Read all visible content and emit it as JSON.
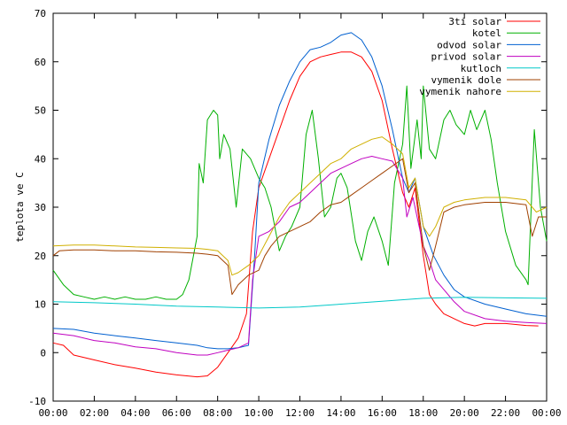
{
  "chart_data": {
    "type": "line",
    "ylabel": "teplota ve C",
    "ylim": [
      -10,
      70
    ],
    "xlim": [
      0,
      24
    ],
    "y_ticks": [
      -10,
      0,
      10,
      20,
      30,
      40,
      50,
      60,
      70
    ],
    "x_ticks": [
      "00:00",
      "02:00",
      "04:00",
      "06:00",
      "08:00",
      "10:00",
      "12:00",
      "14:00",
      "16:00",
      "18:00",
      "20:00",
      "22:00",
      "00:00"
    ],
    "grid": false,
    "legend_position": "top-right",
    "series": [
      {
        "name": "3ti solar",
        "color": "#ff0000",
        "points": [
          [
            0,
            2
          ],
          [
            0.5,
            1.5
          ],
          [
            1,
            -0.5
          ],
          [
            2,
            -1.5
          ],
          [
            3,
            -2.5
          ],
          [
            4,
            -3.2
          ],
          [
            5,
            -4
          ],
          [
            6,
            -4.6
          ],
          [
            7,
            -5
          ],
          [
            7.5,
            -4.8
          ],
          [
            8,
            -3
          ],
          [
            8.5,
            0
          ],
          [
            9,
            3
          ],
          [
            9.4,
            8
          ],
          [
            9.7,
            25
          ],
          [
            10,
            34
          ],
          [
            10.5,
            40
          ],
          [
            11,
            46
          ],
          [
            11.5,
            52
          ],
          [
            12,
            57
          ],
          [
            12.5,
            60
          ],
          [
            13,
            61
          ],
          [
            13.5,
            61.5
          ],
          [
            14,
            62
          ],
          [
            14.5,
            62
          ],
          [
            15,
            61
          ],
          [
            15.5,
            58
          ],
          [
            16,
            52
          ],
          [
            16.5,
            42
          ],
          [
            17,
            33
          ],
          [
            17.3,
            30
          ],
          [
            17.6,
            34
          ],
          [
            18,
            20
          ],
          [
            18.3,
            12
          ],
          [
            18.6,
            10
          ],
          [
            19,
            8
          ],
          [
            19.5,
            7
          ],
          [
            20,
            6
          ],
          [
            20.5,
            5.5
          ],
          [
            21,
            6
          ],
          [
            22,
            6
          ],
          [
            23,
            5.6
          ],
          [
            23.6,
            5.5
          ]
        ]
      },
      {
        "name": "kotel",
        "color": "#00b000",
        "points": [
          [
            0,
            17
          ],
          [
            0.5,
            14
          ],
          [
            1,
            12
          ],
          [
            1.5,
            11.5
          ],
          [
            2,
            11
          ],
          [
            2.5,
            11.5
          ],
          [
            3,
            11
          ],
          [
            3.5,
            11.5
          ],
          [
            4,
            11
          ],
          [
            4.5,
            11
          ],
          [
            5,
            11.5
          ],
          [
            5.5,
            11
          ],
          [
            6,
            11
          ],
          [
            6.3,
            12
          ],
          [
            6.6,
            15
          ],
          [
            7,
            24
          ],
          [
            7.1,
            39
          ],
          [
            7.3,
            35
          ],
          [
            7.5,
            48
          ],
          [
            7.8,
            50
          ],
          [
            8,
            49
          ],
          [
            8.1,
            40
          ],
          [
            8.3,
            45
          ],
          [
            8.6,
            42
          ],
          [
            8.9,
            30
          ],
          [
            9.2,
            42
          ],
          [
            9.6,
            40
          ],
          [
            10,
            36
          ],
          [
            10.3,
            34
          ],
          [
            10.6,
            30
          ],
          [
            11,
            21
          ],
          [
            11.3,
            24
          ],
          [
            11.6,
            26
          ],
          [
            12,
            30
          ],
          [
            12.3,
            45
          ],
          [
            12.6,
            50
          ],
          [
            12.9,
            40
          ],
          [
            13.2,
            28
          ],
          [
            13.5,
            30
          ],
          [
            13.8,
            36
          ],
          [
            14,
            37
          ],
          [
            14.3,
            34
          ],
          [
            14.7,
            23
          ],
          [
            15,
            19
          ],
          [
            15.3,
            25
          ],
          [
            15.6,
            28
          ],
          [
            16,
            23
          ],
          [
            16.3,
            18
          ],
          [
            16.6,
            35
          ],
          [
            17,
            43
          ],
          [
            17.2,
            55
          ],
          [
            17.4,
            38
          ],
          [
            17.7,
            48
          ],
          [
            17.9,
            40
          ],
          [
            18,
            55
          ],
          [
            18.3,
            42
          ],
          [
            18.6,
            40
          ],
          [
            19,
            48
          ],
          [
            19.3,
            50
          ],
          [
            19.6,
            47
          ],
          [
            20,
            45
          ],
          [
            20.3,
            50
          ],
          [
            20.6,
            46
          ],
          [
            21,
            50
          ],
          [
            21.3,
            44
          ],
          [
            21.6,
            35
          ],
          [
            22,
            25
          ],
          [
            22.5,
            18
          ],
          [
            23,
            15
          ],
          [
            23.1,
            14
          ],
          [
            23.4,
            46
          ],
          [
            23.7,
            30
          ],
          [
            24,
            23
          ]
        ]
      },
      {
        "name": "odvod solar",
        "color": "#0060d0",
        "points": [
          [
            0,
            5
          ],
          [
            1,
            4.8
          ],
          [
            2,
            4
          ],
          [
            3,
            3.5
          ],
          [
            4,
            3
          ],
          [
            5,
            2.5
          ],
          [
            6,
            2
          ],
          [
            7,
            1.5
          ],
          [
            7.5,
            1
          ],
          [
            8,
            0.8
          ],
          [
            8.5,
            0.8
          ],
          [
            9,
            1
          ],
          [
            9.5,
            1.5
          ],
          [
            9.8,
            20
          ],
          [
            10,
            35
          ],
          [
            10.5,
            44
          ],
          [
            11,
            51
          ],
          [
            11.5,
            56
          ],
          [
            12,
            60
          ],
          [
            12.5,
            62.5
          ],
          [
            13,
            63
          ],
          [
            13.5,
            64
          ],
          [
            14,
            65.5
          ],
          [
            14.5,
            66
          ],
          [
            15,
            64.5
          ],
          [
            15.5,
            61
          ],
          [
            16,
            55
          ],
          [
            16.5,
            46
          ],
          [
            17,
            36
          ],
          [
            17.3,
            33
          ],
          [
            17.6,
            36
          ],
          [
            18,
            26
          ],
          [
            18.5,
            20
          ],
          [
            19,
            16
          ],
          [
            19.5,
            13
          ],
          [
            20,
            11.5
          ],
          [
            21,
            10
          ],
          [
            22,
            9
          ],
          [
            23,
            8
          ],
          [
            24,
            7.5
          ]
        ]
      },
      {
        "name": "privod solar",
        "color": "#c000c0",
        "points": [
          [
            0,
            4
          ],
          [
            1,
            3.5
          ],
          [
            2,
            2.5
          ],
          [
            3,
            2
          ],
          [
            4,
            1.2
          ],
          [
            5,
            0.8
          ],
          [
            6,
            0
          ],
          [
            7,
            -0.5
          ],
          [
            7.5,
            -0.5
          ],
          [
            8,
            0
          ],
          [
            8.5,
            0.5
          ],
          [
            9,
            1
          ],
          [
            9.5,
            2
          ],
          [
            9.7,
            15
          ],
          [
            10,
            24
          ],
          [
            10.5,
            25
          ],
          [
            11,
            27
          ],
          [
            11.5,
            30
          ],
          [
            12,
            31
          ],
          [
            12.5,
            33
          ],
          [
            13,
            35
          ],
          [
            13.5,
            37
          ],
          [
            14,
            38
          ],
          [
            14.5,
            39
          ],
          [
            15,
            40
          ],
          [
            15.5,
            40.5
          ],
          [
            16,
            40
          ],
          [
            16.5,
            39.5
          ],
          [
            17,
            36
          ],
          [
            17.2,
            28
          ],
          [
            17.5,
            32
          ],
          [
            18,
            22
          ],
          [
            18.3,
            19
          ],
          [
            18.6,
            15
          ],
          [
            19,
            13
          ],
          [
            19.5,
            10.5
          ],
          [
            20,
            8.5
          ],
          [
            21,
            7
          ],
          [
            22,
            6.5
          ],
          [
            23,
            6.2
          ],
          [
            24,
            6
          ]
        ]
      },
      {
        "name": "kutloch",
        "color": "#00c8c8",
        "points": [
          [
            0,
            10.5
          ],
          [
            2,
            10.3
          ],
          [
            4,
            10
          ],
          [
            6,
            9.6
          ],
          [
            8,
            9.4
          ],
          [
            10,
            9.2
          ],
          [
            12,
            9.4
          ],
          [
            14,
            10
          ],
          [
            16,
            10.6
          ],
          [
            18,
            11.2
          ],
          [
            20,
            11.4
          ],
          [
            22,
            11.3
          ],
          [
            24,
            11.2
          ]
        ]
      },
      {
        "name": "vymenik dole",
        "color": "#a04000",
        "points": [
          [
            0,
            20
          ],
          [
            0.3,
            21
          ],
          [
            1,
            21.2
          ],
          [
            2,
            21.2
          ],
          [
            3,
            21
          ],
          [
            4,
            21
          ],
          [
            5,
            20.8
          ],
          [
            6,
            20.7
          ],
          [
            7,
            20.5
          ],
          [
            7.5,
            20.3
          ],
          [
            8,
            20
          ],
          [
            8.5,
            18
          ],
          [
            8.7,
            12
          ],
          [
            9,
            14
          ],
          [
            9.5,
            16
          ],
          [
            10,
            17
          ],
          [
            10.3,
            20
          ],
          [
            10.6,
            22
          ],
          [
            11,
            24
          ],
          [
            11.5,
            25
          ],
          [
            12,
            26
          ],
          [
            12.5,
            27
          ],
          [
            13,
            29
          ],
          [
            13.5,
            30.5
          ],
          [
            14,
            31
          ],
          [
            14.5,
            32.5
          ],
          [
            15,
            34
          ],
          [
            15.5,
            35.5
          ],
          [
            16,
            37
          ],
          [
            16.5,
            38.5
          ],
          [
            17,
            40
          ],
          [
            17.3,
            33
          ],
          [
            17.6,
            35
          ],
          [
            18,
            22
          ],
          [
            18.3,
            17
          ],
          [
            18.6,
            22
          ],
          [
            19,
            29
          ],
          [
            19.5,
            30
          ],
          [
            20,
            30.5
          ],
          [
            21,
            31
          ],
          [
            22,
            31
          ],
          [
            23,
            30.5
          ],
          [
            23.3,
            24
          ],
          [
            23.6,
            28
          ],
          [
            24,
            28
          ]
        ]
      },
      {
        "name": "vymenik nahore",
        "color": "#d0b000",
        "points": [
          [
            0,
            22
          ],
          [
            1,
            22.2
          ],
          [
            2,
            22.2
          ],
          [
            3,
            22
          ],
          [
            4,
            21.8
          ],
          [
            5,
            21.7
          ],
          [
            6,
            21.6
          ],
          [
            7,
            21.5
          ],
          [
            7.5,
            21.3
          ],
          [
            8,
            21
          ],
          [
            8.5,
            19
          ],
          [
            8.7,
            16
          ],
          [
            9,
            16.5
          ],
          [
            9.5,
            18
          ],
          [
            10,
            20
          ],
          [
            10.5,
            24
          ],
          [
            11,
            28
          ],
          [
            11.5,
            31
          ],
          [
            12,
            33
          ],
          [
            12.5,
            35
          ],
          [
            13,
            37
          ],
          [
            13.5,
            39
          ],
          [
            14,
            40
          ],
          [
            14.5,
            42
          ],
          [
            15,
            43
          ],
          [
            15.5,
            44
          ],
          [
            16,
            44.5
          ],
          [
            16.5,
            43
          ],
          [
            17,
            41
          ],
          [
            17.3,
            34
          ],
          [
            17.6,
            36
          ],
          [
            18,
            26
          ],
          [
            18.3,
            24
          ],
          [
            18.6,
            26
          ],
          [
            19,
            30
          ],
          [
            19.5,
            31
          ],
          [
            20,
            31.5
          ],
          [
            21,
            32
          ],
          [
            22,
            32
          ],
          [
            23,
            31.5
          ],
          [
            23.5,
            29
          ],
          [
            24,
            30
          ]
        ]
      }
    ]
  }
}
